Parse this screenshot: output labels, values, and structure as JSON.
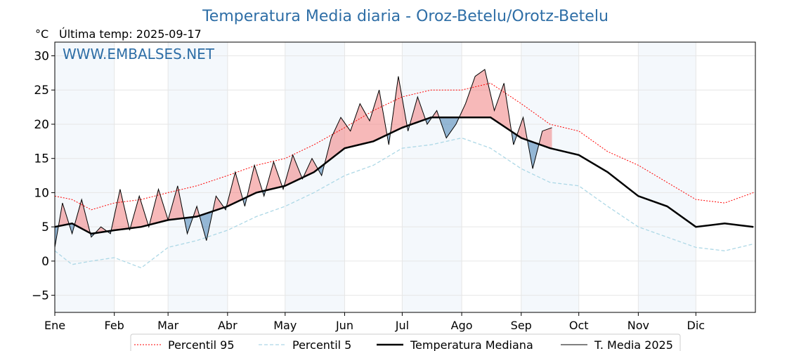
{
  "chart_data": {
    "type": "line",
    "title": "Temperatura Media diaria - Oroz-Betelu/Orotz-Betelu",
    "unit_label": "°C",
    "last_temp_label": "Última temp: 2025-09-17",
    "watermark": "WWW.EMBALSES.NET",
    "ylim": [
      -7.5,
      32
    ],
    "yticks": [
      -5,
      0,
      5,
      10,
      15,
      20,
      25,
      30
    ],
    "months": [
      "Ene",
      "Feb",
      "Mar",
      "Abr",
      "May",
      "Jun",
      "Jul",
      "Ago",
      "Sep",
      "Oct",
      "Nov",
      "Dic"
    ],
    "month_start_doy": [
      1,
      32,
      60,
      91,
      121,
      152,
      182,
      213,
      244,
      274,
      305,
      335
    ],
    "days_in_year": 365,
    "grid": true,
    "legend_position": "bottom",
    "colors": {
      "p95": "#ff0000",
      "p5": "#add8e6",
      "median": "#000000",
      "current": "#000000",
      "above_fill": "#f08080",
      "below_fill": "#4682b4",
      "month_band": "#dce9f5",
      "title": "#2e6ea6"
    },
    "series": [
      {
        "name": "Percentil 95",
        "key": "p95",
        "x": [
          1,
          10,
          20,
          32,
          46,
          60,
          75,
          91,
          106,
          121,
          136,
          152,
          167,
          182,
          197,
          213,
          228,
          244,
          259,
          274,
          289,
          305,
          320,
          335,
          350,
          365
        ],
        "y": [
          9.5,
          9.0,
          7.5,
          8.5,
          9.0,
          10.0,
          11.0,
          12.5,
          14.0,
          15.0,
          17.0,
          19.5,
          22.0,
          24.0,
          25.0,
          25.0,
          26.0,
          23.0,
          20.0,
          19.0,
          16.0,
          14.0,
          11.5,
          9.0,
          8.5,
          10.0
        ]
      },
      {
        "name": "Percentil 5",
        "key": "p5",
        "x": [
          1,
          10,
          20,
          32,
          46,
          60,
          75,
          91,
          106,
          121,
          136,
          152,
          167,
          182,
          197,
          213,
          228,
          244,
          259,
          274,
          289,
          305,
          320,
          335,
          350,
          365
        ],
        "y": [
          1.5,
          -0.5,
          0.0,
          0.5,
          -1.0,
          2.0,
          3.0,
          4.5,
          6.5,
          8.0,
          10.0,
          12.5,
          14.0,
          16.5,
          17.0,
          18.0,
          16.5,
          13.5,
          11.5,
          11.0,
          8.0,
          5.0,
          3.5,
          2.0,
          1.5,
          2.5
        ]
      },
      {
        "name": "Temperatura Mediana",
        "key": "median",
        "x": [
          1,
          10,
          20,
          32,
          46,
          60,
          75,
          91,
          106,
          121,
          136,
          152,
          167,
          182,
          197,
          213,
          228,
          244,
          259,
          274,
          289,
          305,
          320,
          335,
          350,
          365
        ],
        "y": [
          5.0,
          5.5,
          4.0,
          4.5,
          5.0,
          6.0,
          6.5,
          8.0,
          10.0,
          11.0,
          13.0,
          16.5,
          17.5,
          19.5,
          21.0,
          21.0,
          21.0,
          18.0,
          16.5,
          15.5,
          13.0,
          9.5,
          8.0,
          5.0,
          5.5,
          5.0
        ]
      },
      {
        "name": "T. Media 2025",
        "key": "current",
        "x": [
          1,
          5,
          10,
          15,
          20,
          25,
          30,
          35,
          40,
          45,
          50,
          55,
          60,
          65,
          70,
          75,
          80,
          85,
          90,
          95,
          100,
          105,
          110,
          115,
          120,
          125,
          130,
          135,
          140,
          145,
          150,
          155,
          160,
          165,
          170,
          175,
          180,
          185,
          190,
          195,
          200,
          205,
          210,
          215,
          220,
          225,
          230,
          235,
          240,
          245,
          250,
          255,
          260
        ],
        "y": [
          2.0,
          8.5,
          4.0,
          9.0,
          3.5,
          5.0,
          4.0,
          10.5,
          4.5,
          9.5,
          5.0,
          10.5,
          6.0,
          11.0,
          4.0,
          8.0,
          3.0,
          9.5,
          7.5,
          13.0,
          8.0,
          14.0,
          9.5,
          14.5,
          10.5,
          15.5,
          12.0,
          15.0,
          12.5,
          18.0,
          21.0,
          19.0,
          23.0,
          20.5,
          25.0,
          17.0,
          27.0,
          19.0,
          24.0,
          20.0,
          22.0,
          18.0,
          20.0,
          23.0,
          27.0,
          28.0,
          22.0,
          26.0,
          17.0,
          21.0,
          13.5,
          19.0,
          19.5
        ]
      }
    ]
  }
}
